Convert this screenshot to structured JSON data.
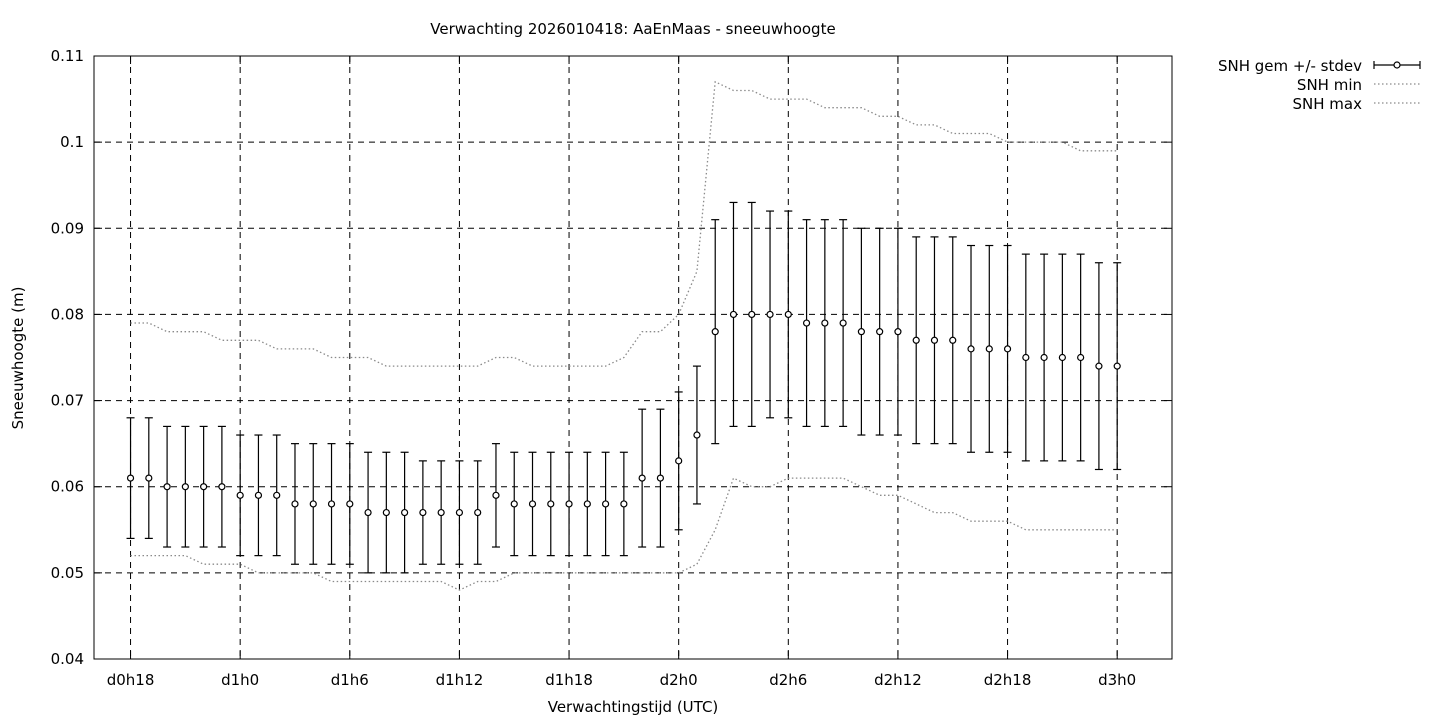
{
  "chart_data": {
    "type": "line",
    "title": "Verwachting 2026010418: AaEnMaas - sneeuwhoogte",
    "xlabel": "Verwachtingstijd (UTC)",
    "ylabel": "Sneeuwhoogte (m)",
    "xlim": [
      16,
      75
    ],
    "ylim": [
      0.04,
      0.11
    ],
    "grid": true,
    "legend_position": "outside-top-right",
    "x_ticks": [
      {
        "value": 18,
        "label": "d0h18"
      },
      {
        "value": 24,
        "label": "d1h0"
      },
      {
        "value": 30,
        "label": "d1h6"
      },
      {
        "value": 36,
        "label": "d1h12"
      },
      {
        "value": 42,
        "label": "d1h18"
      },
      {
        "value": 48,
        "label": "d2h0"
      },
      {
        "value": 54,
        "label": "d2h6"
      },
      {
        "value": 60,
        "label": "d2h12"
      },
      {
        "value": 66,
        "label": "d2h18"
      },
      {
        "value": 72,
        "label": "d3h0"
      }
    ],
    "y_ticks": [
      {
        "value": 0.04,
        "label": "0.04"
      },
      {
        "value": 0.05,
        "label": "0.05"
      },
      {
        "value": 0.06,
        "label": "0.06"
      },
      {
        "value": 0.07,
        "label": "0.07"
      },
      {
        "value": 0.08,
        "label": "0.08"
      },
      {
        "value": 0.09,
        "label": "0.09"
      },
      {
        "value": 0.1,
        "label": "0.1"
      },
      {
        "value": 0.11,
        "label": "0.11"
      }
    ],
    "series": [
      {
        "name": "SNH gem +/- stdev",
        "style": "errorbars",
        "x": [
          18,
          19,
          20,
          21,
          22,
          23,
          24,
          25,
          26,
          27,
          28,
          29,
          30,
          31,
          32,
          33,
          34,
          35,
          36,
          37,
          38,
          39,
          40,
          41,
          42,
          43,
          44,
          45,
          46,
          47,
          48,
          49,
          50,
          51,
          52,
          53,
          54,
          55,
          56,
          57,
          58,
          59,
          60,
          61,
          62,
          63,
          64,
          65,
          66,
          67,
          68,
          69,
          70,
          71,
          72
        ],
        "mean": [
          0.061,
          0.061,
          0.06,
          0.06,
          0.06,
          0.06,
          0.059,
          0.059,
          0.059,
          0.058,
          0.058,
          0.058,
          0.058,
          0.057,
          0.057,
          0.057,
          0.057,
          0.057,
          0.057,
          0.057,
          0.059,
          0.058,
          0.058,
          0.058,
          0.058,
          0.058,
          0.058,
          0.058,
          0.061,
          0.061,
          0.063,
          0.066,
          0.078,
          0.08,
          0.08,
          0.08,
          0.08,
          0.079,
          0.079,
          0.079,
          0.078,
          0.078,
          0.078,
          0.077,
          0.077,
          0.077,
          0.076,
          0.076,
          0.076,
          0.075,
          0.075,
          0.075,
          0.075,
          0.074,
          0.074
        ],
        "low": [
          0.054,
          0.054,
          0.053,
          0.053,
          0.053,
          0.053,
          0.052,
          0.052,
          0.052,
          0.051,
          0.051,
          0.051,
          0.051,
          0.05,
          0.05,
          0.05,
          0.051,
          0.051,
          0.051,
          0.051,
          0.053,
          0.052,
          0.052,
          0.052,
          0.052,
          0.052,
          0.052,
          0.052,
          0.053,
          0.053,
          0.055,
          0.058,
          0.065,
          0.067,
          0.067,
          0.068,
          0.068,
          0.067,
          0.067,
          0.067,
          0.066,
          0.066,
          0.066,
          0.065,
          0.065,
          0.065,
          0.064,
          0.064,
          0.064,
          0.063,
          0.063,
          0.063,
          0.063,
          0.062,
          0.062
        ],
        "high": [
          0.068,
          0.068,
          0.067,
          0.067,
          0.067,
          0.067,
          0.066,
          0.066,
          0.066,
          0.065,
          0.065,
          0.065,
          0.065,
          0.064,
          0.064,
          0.064,
          0.063,
          0.063,
          0.063,
          0.063,
          0.065,
          0.064,
          0.064,
          0.064,
          0.064,
          0.064,
          0.064,
          0.064,
          0.069,
          0.069,
          0.071,
          0.074,
          0.091,
          0.093,
          0.093,
          0.092,
          0.092,
          0.091,
          0.091,
          0.091,
          0.09,
          0.09,
          0.09,
          0.089,
          0.089,
          0.089,
          0.088,
          0.088,
          0.088,
          0.087,
          0.087,
          0.087,
          0.087,
          0.086,
          0.086
        ]
      },
      {
        "name": "SNH min",
        "style": "dotted",
        "x": [
          18,
          19,
          20,
          21,
          22,
          23,
          24,
          25,
          26,
          27,
          28,
          29,
          30,
          31,
          32,
          33,
          34,
          35,
          36,
          37,
          38,
          39,
          40,
          41,
          42,
          43,
          44,
          45,
          46,
          47,
          48,
          49,
          50,
          51,
          52,
          53,
          54,
          55,
          56,
          57,
          58,
          59,
          60,
          61,
          62,
          63,
          64,
          65,
          66,
          67,
          68,
          69,
          70,
          71,
          72
        ],
        "values": [
          0.052,
          0.052,
          0.052,
          0.052,
          0.051,
          0.051,
          0.051,
          0.05,
          0.05,
          0.05,
          0.05,
          0.049,
          0.049,
          0.049,
          0.049,
          0.049,
          0.049,
          0.049,
          0.048,
          0.049,
          0.049,
          0.05,
          0.05,
          0.05,
          0.05,
          0.05,
          0.05,
          0.05,
          0.05,
          0.05,
          0.05,
          0.051,
          0.055,
          0.061,
          0.06,
          0.06,
          0.061,
          0.061,
          0.061,
          0.061,
          0.06,
          0.059,
          0.059,
          0.058,
          0.057,
          0.057,
          0.056,
          0.056,
          0.056,
          0.055,
          0.055,
          0.055,
          0.055,
          0.055,
          0.055
        ]
      },
      {
        "name": "SNH max",
        "style": "dotted",
        "x": [
          18,
          19,
          20,
          21,
          22,
          23,
          24,
          25,
          26,
          27,
          28,
          29,
          30,
          31,
          32,
          33,
          34,
          35,
          36,
          37,
          38,
          39,
          40,
          41,
          42,
          43,
          44,
          45,
          46,
          47,
          48,
          49,
          50,
          51,
          52,
          53,
          54,
          55,
          56,
          57,
          58,
          59,
          60,
          61,
          62,
          63,
          64,
          65,
          66,
          67,
          68,
          69,
          70,
          71,
          72
        ],
        "values": [
          0.079,
          0.079,
          0.078,
          0.078,
          0.078,
          0.077,
          0.077,
          0.077,
          0.076,
          0.076,
          0.076,
          0.075,
          0.075,
          0.075,
          0.074,
          0.074,
          0.074,
          0.074,
          0.074,
          0.074,
          0.075,
          0.075,
          0.074,
          0.074,
          0.074,
          0.074,
          0.074,
          0.075,
          0.078,
          0.078,
          0.08,
          0.085,
          0.107,
          0.106,
          0.106,
          0.105,
          0.105,
          0.105,
          0.104,
          0.104,
          0.104,
          0.103,
          0.103,
          0.102,
          0.102,
          0.101,
          0.101,
          0.101,
          0.1,
          0.1,
          0.1,
          0.1,
          0.099,
          0.099,
          0.099
        ]
      }
    ]
  }
}
